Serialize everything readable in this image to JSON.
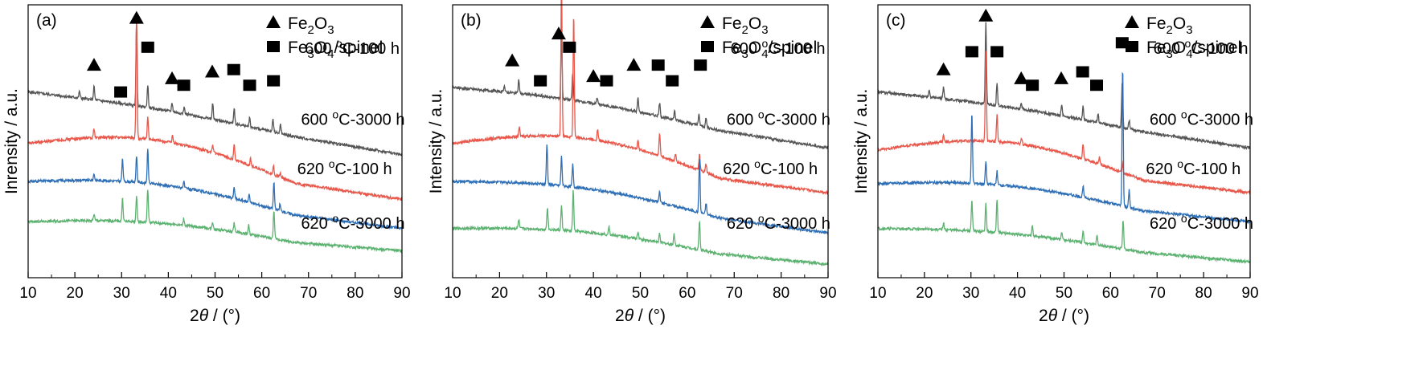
{
  "chart_data": [
    {
      "type": "line",
      "panel_label": "(a)",
      "xlabel_theta": "θ",
      "xlabel_prefix": "2",
      "xlabel_suffix": " / (°)",
      "ylabel": "Inrensity / a.u.",
      "xlim": [
        10,
        90
      ],
      "xticks": [
        10,
        20,
        30,
        40,
        50,
        60,
        70,
        80,
        90
      ],
      "legend": [
        {
          "marker": "triangle",
          "label": "Fe2O3"
        },
        {
          "marker": "square",
          "label": "Fe3O4/spinel"
        }
      ],
      "series": [
        {
          "name": "600 °C-100 h",
          "color": "#555555",
          "start": 0.83,
          "end": 0.55,
          "hump": 0.02,
          "peaks": [
            [
              21,
              0.03
            ],
            [
              24.1,
              0.06
            ],
            [
              33.2,
              0.38
            ],
            [
              35.6,
              0.1
            ],
            [
              40.8,
              0.04
            ],
            [
              43.4,
              0.03
            ],
            [
              49.5,
              0.07
            ],
            [
              54.1,
              0.07
            ],
            [
              57.4,
              0.04
            ],
            [
              62.4,
              0.06
            ],
            [
              64,
              0.04
            ]
          ]
        },
        {
          "name": "600 °C-3000 h",
          "color": "#e8574a",
          "start": 0.6,
          "end": 0.35,
          "hump": 0.1,
          "peaks": [
            [
              24.1,
              0.04
            ],
            [
              33.2,
              0.55
            ],
            [
              35.6,
              0.1
            ],
            [
              40.9,
              0.03
            ],
            [
              49.5,
              0.03
            ],
            [
              54.1,
              0.07
            ],
            [
              57.6,
              0.03
            ],
            [
              62.5,
              0.04
            ],
            [
              64,
              0.02
            ]
          ]
        },
        {
          "name": "620 °C-100 h",
          "color": "#2f6fb5",
          "start": 0.43,
          "end": 0.22,
          "hump": 0.06,
          "peaks": [
            [
              24.1,
              0.03
            ],
            [
              30.2,
              0.1
            ],
            [
              33.2,
              0.12
            ],
            [
              35.6,
              0.15
            ],
            [
              43.3,
              0.03
            ],
            [
              54.1,
              0.05
            ],
            [
              57.3,
              0.04
            ],
            [
              62.6,
              0.12
            ],
            [
              63.9,
              0.03
            ]
          ]
        },
        {
          "name": "620 °C-3000 h",
          "color": "#5cb270",
          "start": 0.25,
          "end": 0.12,
          "hump": 0.04,
          "peaks": [
            [
              24.1,
              0.03
            ],
            [
              30.2,
              0.1
            ],
            [
              33.2,
              0.11
            ],
            [
              35.6,
              0.15
            ],
            [
              43.3,
              0.03
            ],
            [
              49.5,
              0.03
            ],
            [
              54.1,
              0.04
            ],
            [
              57.2,
              0.04
            ],
            [
              62.6,
              0.13
            ]
          ]
        }
      ],
      "series_label_text": [
        "600 ",
        "oC-100 h",
        "600 ",
        "oC-3000 h",
        "620 ",
        "oC-100 h",
        "620 ",
        "oC-3000 h"
      ],
      "annotations": [
        {
          "marker": "triangle",
          "x": 24.1,
          "y": 0.95
        },
        {
          "marker": "square",
          "x": 29.8,
          "y": 0.83
        },
        {
          "marker": "triangle",
          "x": 33.2,
          "y": 1.16
        },
        {
          "marker": "square",
          "x": 35.6,
          "y": 1.03
        },
        {
          "marker": "triangle",
          "x": 40.8,
          "y": 0.89
        },
        {
          "marker": "square",
          "x": 43.3,
          "y": 0.86
        },
        {
          "marker": "triangle",
          "x": 49.4,
          "y": 0.92
        },
        {
          "marker": "square",
          "x": 54.0,
          "y": 0.93
        },
        {
          "marker": "square",
          "x": 57.4,
          "y": 0.86
        },
        {
          "marker": "square",
          "x": 62.5,
          "y": 0.88
        }
      ]
    },
    {
      "type": "line",
      "panel_label": "(b)",
      "xlabel_theta": "θ",
      "xlabel_prefix": "2",
      "xlabel_suffix": " / (°)",
      "ylabel": "Intensity / a.u.",
      "xlim": [
        10,
        90
      ],
      "xticks": [
        10,
        20,
        30,
        40,
        50,
        60,
        70,
        80,
        90
      ],
      "legend": [
        {
          "marker": "triangle",
          "label": "Fe2O3"
        },
        {
          "marker": "square",
          "label": "Fe3O4/spinel"
        }
      ],
      "series": [
        {
          "name": "600 °C-100 h",
          "color": "#555555",
          "start": 0.85,
          "end": 0.58,
          "hump": 0.03,
          "peaks": [
            [
              21,
              0.03
            ],
            [
              24.1,
              0.06
            ],
            [
              33.2,
              0.3
            ],
            [
              35.6,
              0.12
            ],
            [
              40.8,
              0.03
            ],
            [
              49.5,
              0.06
            ],
            [
              54.1,
              0.06
            ],
            [
              57.3,
              0.04
            ],
            [
              62.5,
              0.05
            ],
            [
              64,
              0.04
            ]
          ]
        },
        {
          "name": "600 °C-3000 h",
          "color": "#e8574a",
          "start": 0.6,
          "end": 0.38,
          "hump": 0.1,
          "peaks": [
            [
              24.2,
              0.04
            ],
            [
              33.2,
              0.7
            ],
            [
              35.8,
              0.55
            ],
            [
              40.9,
              0.05
            ],
            [
              49.5,
              0.04
            ],
            [
              54.1,
              0.1
            ],
            [
              57.5,
              0.03
            ],
            [
              62.6,
              0.07
            ],
            [
              64,
              0.04
            ]
          ]
        },
        {
          "name": "620 °C-100 h",
          "color": "#2f6fb5",
          "start": 0.43,
          "end": 0.2,
          "hump": 0.05,
          "peaks": [
            [
              30.1,
              0.18
            ],
            [
              33.2,
              0.13
            ],
            [
              35.6,
              0.1
            ],
            [
              54.1,
              0.05
            ],
            [
              62.6,
              0.25
            ],
            [
              64,
              0.05
            ]
          ]
        },
        {
          "name": "620 °C-3000 h",
          "color": "#5cb270",
          "start": 0.22,
          "end": 0.06,
          "hump": 0.04,
          "peaks": [
            [
              24.1,
              0.04
            ],
            [
              30.2,
              0.1
            ],
            [
              33.2,
              0.11
            ],
            [
              35.7,
              0.18
            ],
            [
              43.3,
              0.04
            ],
            [
              49.5,
              0.03
            ],
            [
              54.1,
              0.04
            ],
            [
              57.2,
              0.05
            ],
            [
              62.6,
              0.13
            ]
          ]
        }
      ],
      "series_label_text": [
        "600 ",
        "oC-100 h",
        "600 ",
        "oC-3000 h",
        "620 ",
        "oC-100 h",
        "620 ",
        "oC-3000 h"
      ],
      "annotations": [
        {
          "marker": "triangle",
          "x": 22.7,
          "y": 0.97
        },
        {
          "marker": "square",
          "x": 28.7,
          "y": 0.88
        },
        {
          "marker": "triangle",
          "x": 32.6,
          "y": 1.09
        },
        {
          "marker": "square",
          "x": 34.9,
          "y": 1.03
        },
        {
          "marker": "triangle",
          "x": 40.0,
          "y": 0.9
        },
        {
          "marker": "square",
          "x": 42.8,
          "y": 0.88
        },
        {
          "marker": "triangle",
          "x": 48.6,
          "y": 0.95
        },
        {
          "marker": "square",
          "x": 53.8,
          "y": 0.95
        },
        {
          "marker": "square",
          "x": 56.8,
          "y": 0.88
        },
        {
          "marker": "square",
          "x": 62.8,
          "y": 0.95
        }
      ]
    },
    {
      "type": "line",
      "panel_label": "(c)",
      "xlabel_theta": "θ",
      "xlabel_prefix": "2",
      "xlabel_suffix": " / (°)",
      "ylabel": "Intensity / a.u.",
      "xlim": [
        10,
        90
      ],
      "xticks": [
        10,
        20,
        30,
        40,
        50,
        60,
        70,
        80,
        90
      ],
      "legend": [
        {
          "marker": "triangle",
          "label": "Fe2O3"
        },
        {
          "marker": "square",
          "label": "Fe3O4/spinel"
        }
      ],
      "series": [
        {
          "name": "600 °C-100 h",
          "color": "#555555",
          "start": 0.83,
          "end": 0.58,
          "hump": 0.02,
          "peaks": [
            [
              21,
              0.03
            ],
            [
              24.1,
              0.05
            ],
            [
              33.2,
              0.36
            ],
            [
              35.6,
              0.1
            ],
            [
              40.8,
              0.03
            ],
            [
              49.5,
              0.05
            ],
            [
              54.1,
              0.06
            ],
            [
              57.3,
              0.04
            ],
            [
              62.5,
              0.2
            ],
            [
              64,
              0.04
            ]
          ]
        },
        {
          "name": "600 °C-3000 h",
          "color": "#e8574a",
          "start": 0.57,
          "end": 0.38,
          "hump": 0.1,
          "peaks": [
            [
              24.1,
              0.03
            ],
            [
              33.2,
              0.4
            ],
            [
              35.6,
              0.12
            ],
            [
              40.9,
              0.03
            ],
            [
              54.1,
              0.07
            ],
            [
              57.6,
              0.03
            ],
            [
              62.5,
              0.05
            ]
          ]
        },
        {
          "name": "620 °C-100 h",
          "color": "#2f6fb5",
          "start": 0.42,
          "end": 0.25,
          "hump": 0.05,
          "peaks": [
            [
              30.2,
              0.32
            ],
            [
              33.2,
              0.1
            ],
            [
              35.6,
              0.06
            ],
            [
              54.1,
              0.05
            ],
            [
              62.6,
              0.62
            ],
            [
              64,
              0.08
            ]
          ]
        },
        {
          "name": "620 °C-3000 h",
          "color": "#5cb270",
          "start": 0.22,
          "end": 0.07,
          "hump": 0.03,
          "peaks": [
            [
              24.1,
              0.03
            ],
            [
              30.2,
              0.14
            ],
            [
              33.2,
              0.13
            ],
            [
              35.6,
              0.15
            ],
            [
              43.2,
              0.05
            ],
            [
              49.5,
              0.03
            ],
            [
              54.1,
              0.05
            ],
            [
              57.1,
              0.04
            ],
            [
              62.7,
              0.13
            ]
          ]
        }
      ],
      "series_label_text": [
        "600 ",
        "oC-100 h",
        "600 ",
        "oC-3000 h",
        "620 ",
        "oC-100 h",
        "620 ",
        "oC-3000 h"
      ],
      "annotations": [
        {
          "marker": "triangle",
          "x": 24.1,
          "y": 0.93
        },
        {
          "marker": "square",
          "x": 30.2,
          "y": 1.01
        },
        {
          "marker": "triangle",
          "x": 33.2,
          "y": 1.17
        },
        {
          "marker": "square",
          "x": 35.6,
          "y": 1.01
        },
        {
          "marker": "triangle",
          "x": 40.8,
          "y": 0.89
        },
        {
          "marker": "square",
          "x": 43.2,
          "y": 0.86
        },
        {
          "marker": "triangle",
          "x": 49.4,
          "y": 0.89
        },
        {
          "marker": "square",
          "x": 54.0,
          "y": 0.92
        },
        {
          "marker": "square",
          "x": 57.0,
          "y": 0.86
        },
        {
          "marker": "square",
          "x": 62.5,
          "y": 1.05
        }
      ]
    }
  ]
}
